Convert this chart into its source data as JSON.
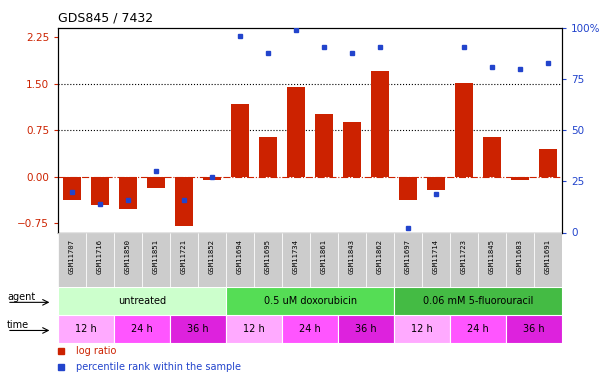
{
  "title": "GDS845 / 7432",
  "samples": [
    "GSM11707",
    "GSM11716",
    "GSM11850",
    "GSM11851",
    "GSM11721",
    "GSM11852",
    "GSM11694",
    "GSM11695",
    "GSM11734",
    "GSM11861",
    "GSM11843",
    "GSM11862",
    "GSM11697",
    "GSM11714",
    "GSM11723",
    "GSM11845",
    "GSM11683",
    "GSM11691"
  ],
  "log_ratio": [
    -0.38,
    -0.45,
    -0.52,
    -0.18,
    -0.8,
    -0.05,
    1.18,
    0.65,
    1.45,
    1.02,
    0.88,
    1.7,
    -0.38,
    -0.22,
    1.52,
    0.65,
    -0.06,
    0.45
  ],
  "percentile": [
    20,
    14,
    16,
    30,
    16,
    27,
    96,
    88,
    99,
    91,
    88,
    91,
    2,
    19,
    91,
    81,
    80,
    83
  ],
  "ylim_left": [
    -0.9,
    2.4
  ],
  "ylim_right": [
    0,
    100
  ],
  "yticks_left": [
    -0.75,
    0,
    0.75,
    1.5,
    2.25
  ],
  "yticks_right": [
    0,
    25,
    50,
    75,
    100
  ],
  "hlines": [
    0.75,
    1.5
  ],
  "agent_groups": [
    {
      "label": "untreated",
      "start": 0,
      "end": 6,
      "color": "#ccffcc"
    },
    {
      "label": "0.5 uM doxorubicin",
      "start": 6,
      "end": 12,
      "color": "#55dd55"
    },
    {
      "label": "0.06 mM 5-fluorouracil",
      "start": 12,
      "end": 18,
      "color": "#44bb44"
    }
  ],
  "time_groups": [
    {
      "label": "12 h",
      "start": 0,
      "end": 2,
      "color": "#ffaaff"
    },
    {
      "label": "24 h",
      "start": 2,
      "end": 4,
      "color": "#ff55ff"
    },
    {
      "label": "36 h",
      "start": 4,
      "end": 6,
      "color": "#dd22dd"
    },
    {
      "label": "12 h",
      "start": 6,
      "end": 8,
      "color": "#ffaaff"
    },
    {
      "label": "24 h",
      "start": 8,
      "end": 10,
      "color": "#ff55ff"
    },
    {
      "label": "36 h",
      "start": 10,
      "end": 12,
      "color": "#dd22dd"
    },
    {
      "label": "12 h",
      "start": 12,
      "end": 14,
      "color": "#ffaaff"
    },
    {
      "label": "24 h",
      "start": 14,
      "end": 16,
      "color": "#ff55ff"
    },
    {
      "label": "36 h",
      "start": 16,
      "end": 18,
      "color": "#dd22dd"
    }
  ],
  "bar_color": "#cc2200",
  "dot_color": "#2244cc",
  "axis_color_left": "#cc2200",
  "axis_color_right": "#2244cc",
  "sample_box_color": "#cccccc",
  "fig_width": 6.11,
  "fig_height": 3.75,
  "dpi": 100
}
